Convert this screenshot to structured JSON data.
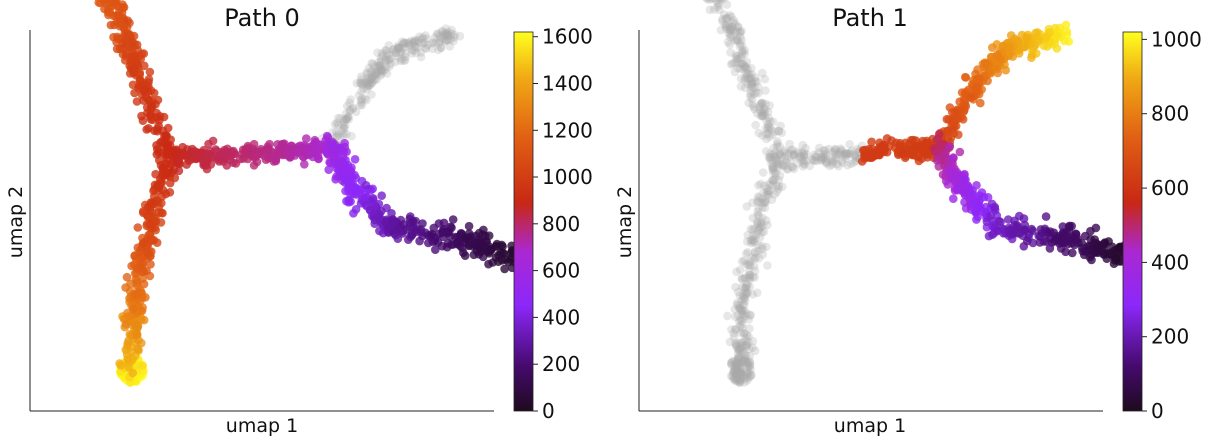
{
  "chart_data": [
    {
      "type": "scatter",
      "title": "Path 0",
      "xlabel": "umap 1",
      "ylabel": "umap 2",
      "colorbar": {
        "min": 0,
        "max": 1620,
        "ticks": [
          "0",
          "200",
          "400",
          "600",
          "800",
          "1000",
          "1200",
          "1400",
          "1600"
        ],
        "colormap": "gnuplot"
      },
      "grid": false,
      "legend": "none",
      "inactive_color": "#a8a8a8",
      "branches": [
        {
          "name": "top-left arm",
          "active": true,
          "path": [
            [
              0.0,
              4.9
            ],
            [
              0.6,
              4.0
            ],
            [
              1.0,
              3.2
            ],
            [
              1.6,
              2.0
            ]
          ],
          "values": [
            1200,
            1100,
            1000,
            900
          ],
          "spread": 0.1
        },
        {
          "name": "left cluster",
          "active": true,
          "center": [
            -0.2,
            4.95
          ],
          "radius": 0.22,
          "value": 1250
        },
        {
          "name": "center branch",
          "active": true,
          "path": [
            [
              1.6,
              1.95
            ],
            [
              2.7,
              1.95
            ],
            [
              3.9,
              2.05
            ],
            [
              4.9,
              2.1
            ]
          ],
          "values": [
            900,
            820,
            750,
            680
          ],
          "spread": 0.08
        },
        {
          "name": "bottom-left arm",
          "active": true,
          "path": [
            [
              1.6,
              1.95
            ],
            [
              1.2,
              0.9
            ],
            [
              0.9,
              -0.2
            ],
            [
              0.85,
              -1.1
            ]
          ],
          "values": [
            900,
            1050,
            1250,
            1450
          ],
          "spread": 0.1
        },
        {
          "name": "bottom cluster",
          "active": true,
          "center": [
            0.85,
            -1.25
          ],
          "radius": 0.2,
          "value": 1600
        },
        {
          "name": "lower-right arm",
          "active": true,
          "path": [
            [
              4.9,
              2.1
            ],
            [
              5.3,
              1.5
            ],
            [
              6.1,
              0.9
            ],
            [
              7.5,
              0.7
            ],
            [
              8.6,
              0.45
            ]
          ],
          "values": [
            600,
            480,
            300,
            150,
            40
          ],
          "spread": 0.1
        },
        {
          "name": "upper-right arm",
          "active": false,
          "path": [
            [
              4.9,
              2.1
            ],
            [
              5.6,
              3.1
            ],
            [
              6.3,
              3.6
            ],
            [
              7.4,
              3.8
            ]
          ],
          "values": [
            0,
            0,
            0,
            0
          ],
          "spread": 0.08
        }
      ]
    },
    {
      "type": "scatter",
      "title": "Path 1",
      "xlabel": "umap 1",
      "ylabel": "umap 2",
      "colorbar": {
        "min": 0,
        "max": 1020,
        "ticks": [
          "0",
          "200",
          "400",
          "600",
          "800",
          "1000"
        ],
        "colormap": "gnuplot"
      },
      "grid": false,
      "legend": "none",
      "inactive_color": "#a8a8a8",
      "branches": [
        {
          "name": "top-left arm",
          "active": false,
          "path": [
            [
              0.0,
              4.9
            ],
            [
              0.6,
              4.0
            ],
            [
              1.0,
              3.2
            ],
            [
              1.6,
              2.0
            ]
          ],
          "values": [
            0,
            0,
            0,
            0
          ],
          "spread": 0.1
        },
        {
          "name": "left cluster",
          "active": false,
          "center": [
            -0.2,
            4.95
          ],
          "radius": 0.22,
          "value": 0
        },
        {
          "name": "center branch",
          "active": true,
          "path": [
            [
              1.6,
              1.95
            ],
            [
              2.7,
              1.95
            ],
            [
              3.9,
              2.05
            ],
            [
              4.9,
              2.1
            ]
          ],
          "values": [
            -999,
            -999,
            640,
            620
          ],
          "spread": 0.08
        },
        {
          "name": "bottom-left arm",
          "active": false,
          "path": [
            [
              1.6,
              1.95
            ],
            [
              1.2,
              0.9
            ],
            [
              0.9,
              -0.2
            ],
            [
              0.85,
              -1.1
            ]
          ],
          "values": [
            0,
            0,
            0,
            0
          ],
          "spread": 0.1
        },
        {
          "name": "bottom cluster",
          "active": false,
          "center": [
            0.85,
            -1.25
          ],
          "radius": 0.2,
          "value": 0
        },
        {
          "name": "lower-right arm",
          "active": true,
          "path": [
            [
              4.9,
              2.1
            ],
            [
              5.3,
              1.5
            ],
            [
              6.1,
              0.9
            ],
            [
              7.5,
              0.7
            ],
            [
              8.6,
              0.45
            ]
          ],
          "values": [
            520,
            380,
            220,
            110,
            20
          ],
          "spread": 0.1
        },
        {
          "name": "upper-right arm",
          "active": true,
          "path": [
            [
              4.9,
              2.1
            ],
            [
              5.6,
              3.1
            ],
            [
              6.3,
              3.6
            ],
            [
              7.4,
              3.8
            ]
          ],
          "values": [
            640,
            760,
            880,
            1000
          ],
          "spread": 0.08
        }
      ],
      "inactive_center_range": [
        1.6,
        3.3
      ]
    }
  ]
}
